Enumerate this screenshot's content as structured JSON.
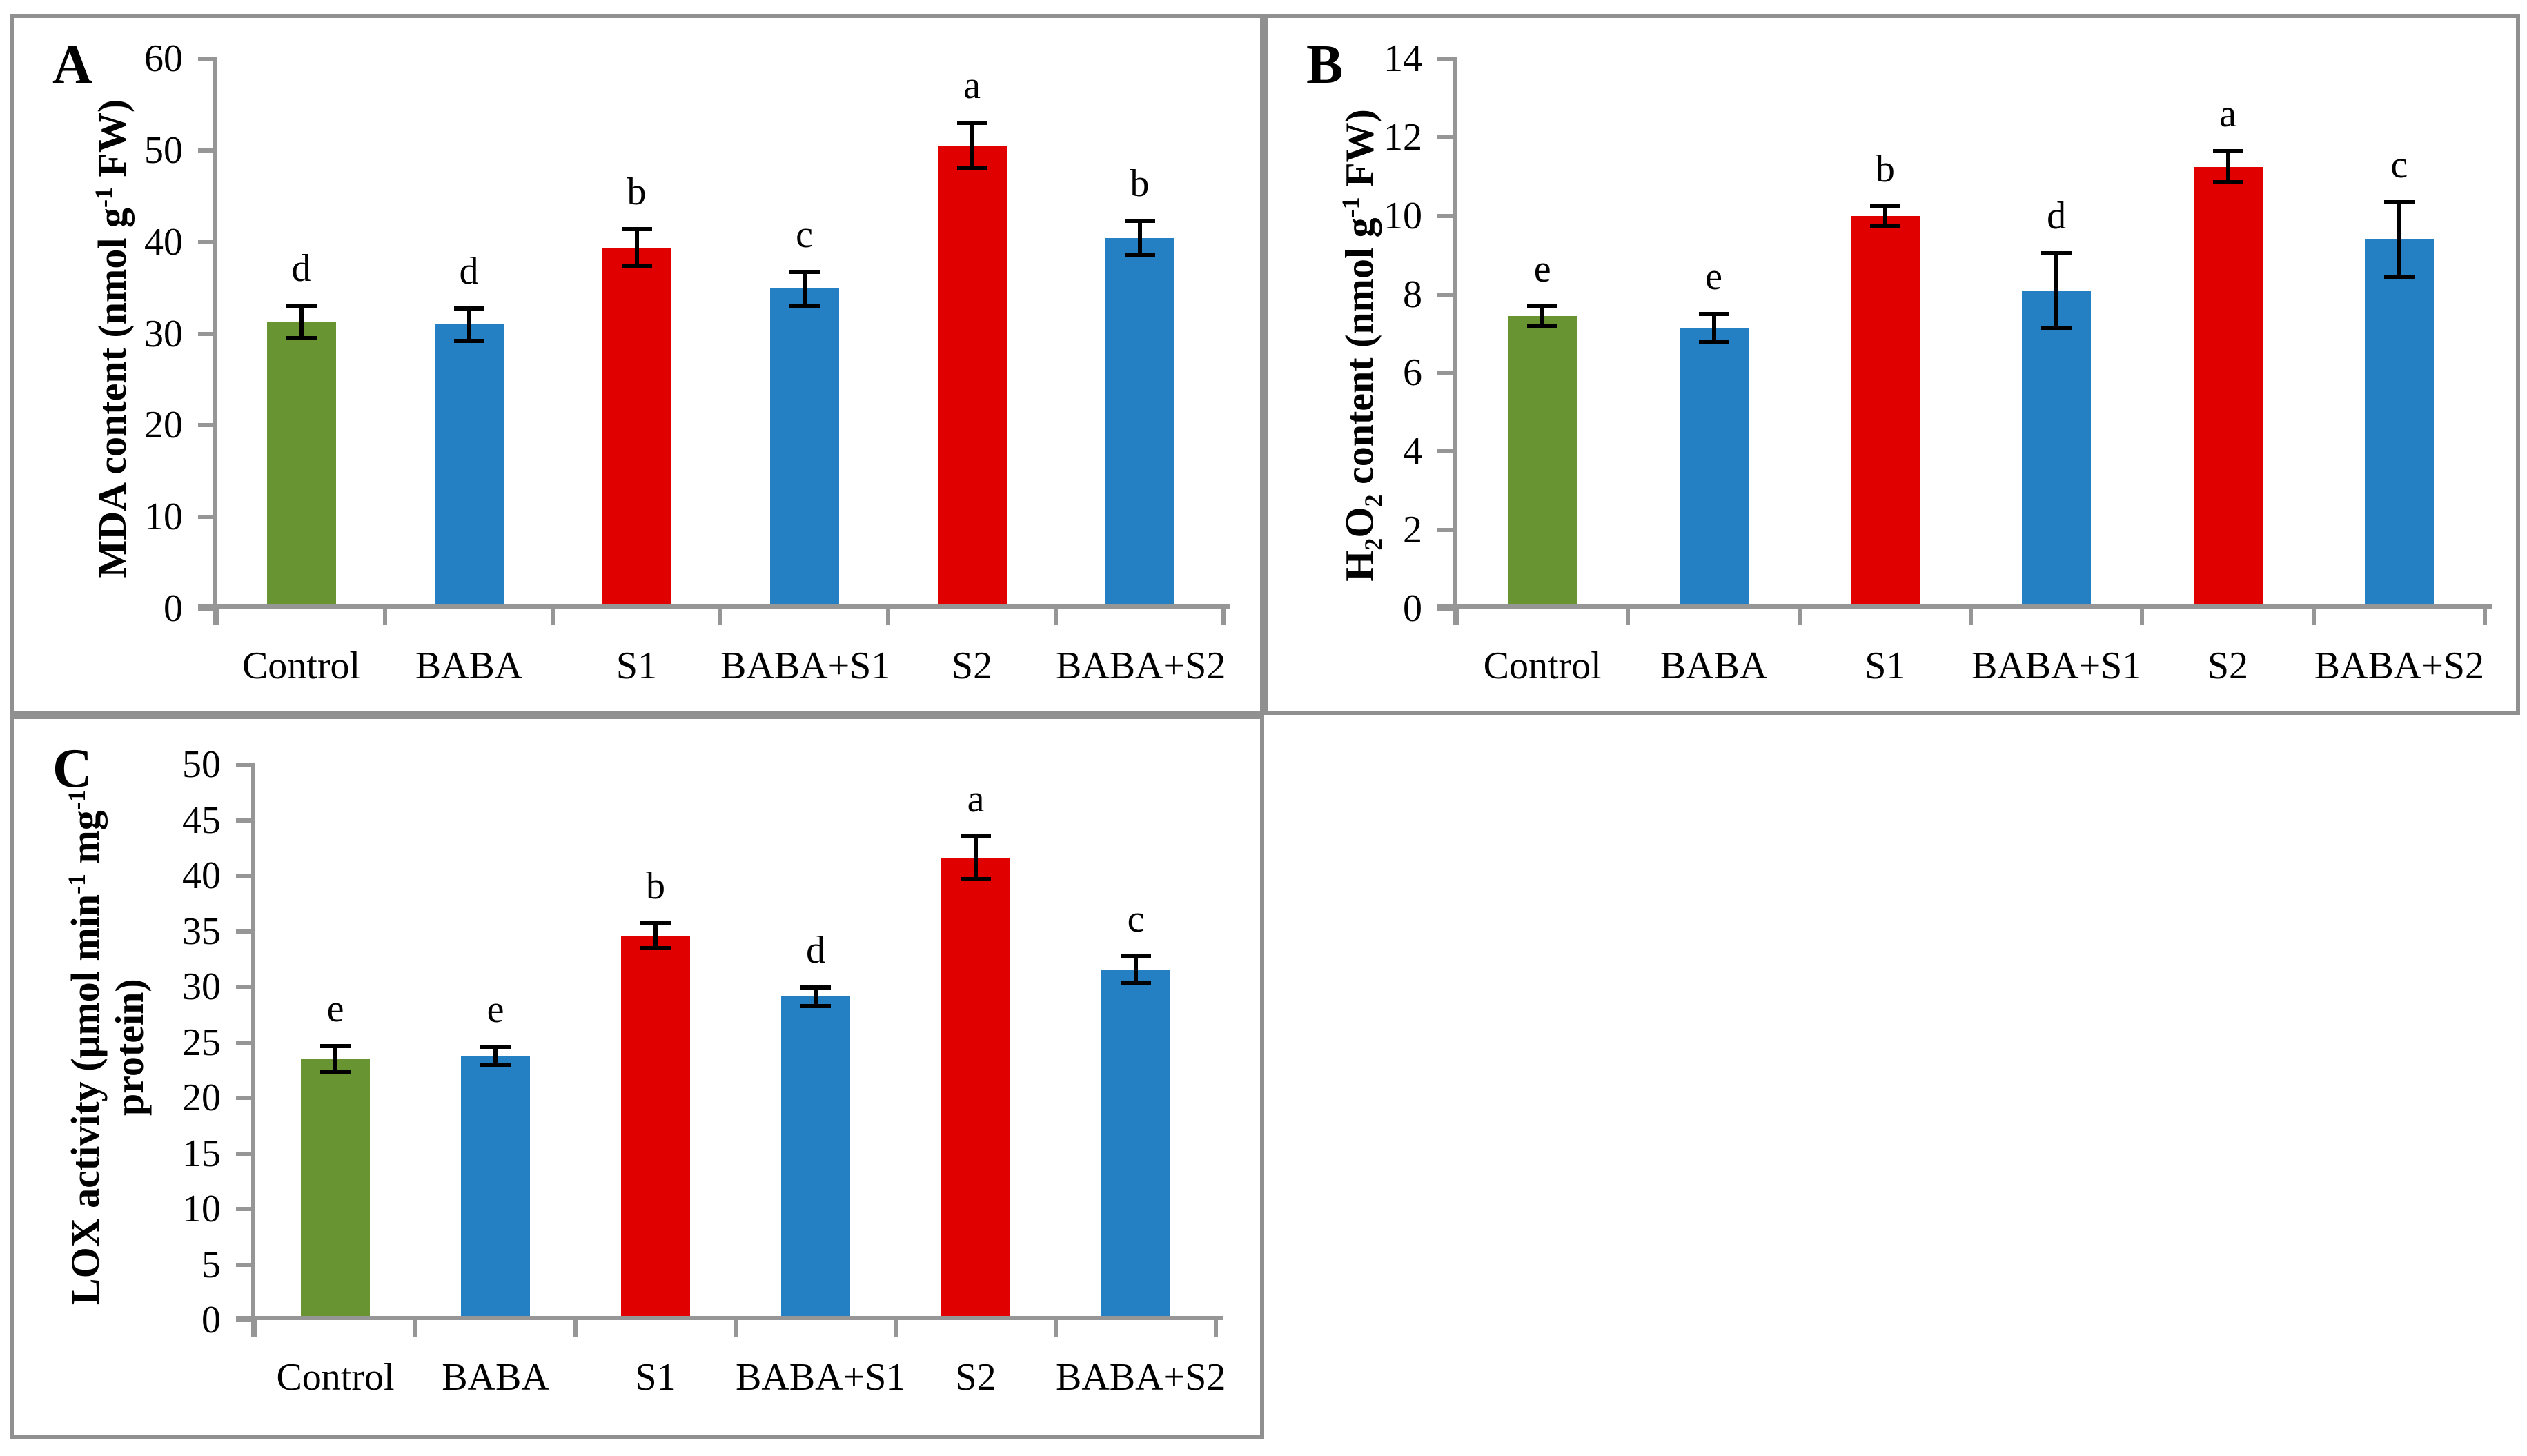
{
  "figure": {
    "background": "#ffffff",
    "panel_border_color": "#909090",
    "axis_color": "#969696",
    "text_color": "#000000"
  },
  "chart_data": [
    {
      "type": "bar",
      "panel_letter": "A",
      "title": "",
      "xlabel": "",
      "ylabel": "MDA content (nmol g-1 FW)",
      "ylabel_lines": [
        [
          {
            "text": "MDA content (nmol g",
            "style": "normal"
          },
          {
            "text": "-1",
            "style": "sup"
          },
          {
            "text": " FW)",
            "style": "normal"
          }
        ]
      ],
      "categories": [
        "Control",
        "BABA",
        "S1",
        "BABA+S1",
        "S2",
        "BABA+S2"
      ],
      "values": [
        31.3,
        31.0,
        39.4,
        34.9,
        50.5,
        40.4
      ],
      "errors": [
        2.0,
        2.0,
        2.2,
        2.1,
        2.7,
        2.1
      ],
      "sig_letters": [
        "d",
        "d",
        "b",
        "c",
        "a",
        "b"
      ],
      "bar_colors": [
        "#699432",
        "#2480c2",
        "#e00000",
        "#2480c2",
        "#e00000",
        "#2480c2"
      ],
      "ylim": [
        0,
        60
      ],
      "ytick_step": 10,
      "grid": false,
      "legend": null
    },
    {
      "type": "bar",
      "panel_letter": "B",
      "title": "",
      "xlabel": "",
      "ylabel": "H2O2 content (nmol g-1 FW)",
      "ylabel_lines": [
        [
          {
            "text": "H",
            "style": "normal"
          },
          {
            "text": "2",
            "style": "sub"
          },
          {
            "text": "O",
            "style": "normal"
          },
          {
            "text": "2",
            "style": "sub"
          },
          {
            "text": " content (nmol g",
            "style": "normal"
          },
          {
            "text": "-1",
            "style": "sup"
          },
          {
            "text": " FW)",
            "style": "normal"
          }
        ]
      ],
      "categories": [
        "Control",
        "BABA",
        "S1",
        "BABA+S1",
        "S2",
        "BABA+S2"
      ],
      "values": [
        7.45,
        7.15,
        10.0,
        8.1,
        11.25,
        9.4
      ],
      "errors": [
        0.3,
        0.4,
        0.3,
        1.0,
        0.45,
        1.0
      ],
      "sig_letters": [
        "e",
        "e",
        "b",
        "d",
        "a",
        "c"
      ],
      "bar_colors": [
        "#699432",
        "#2480c2",
        "#e00000",
        "#2480c2",
        "#e00000",
        "#2480c2"
      ],
      "ylim": [
        0,
        14
      ],
      "ytick_step": 2,
      "grid": false,
      "legend": null
    },
    {
      "type": "bar",
      "panel_letter": "C",
      "title": "",
      "xlabel": "",
      "ylabel": "LOX activity (umol min-1 mg-1 protein)",
      "ylabel_lines": [
        [
          {
            "text": "LOX activity  (μmol min",
            "style": "normal"
          },
          {
            "text": "-1",
            "style": "sup"
          },
          {
            "text": " mg",
            "style": "normal"
          },
          {
            "text": "-1",
            "style": "sup"
          }
        ],
        [
          {
            "text": "protein)",
            "style": "normal"
          }
        ]
      ],
      "categories": [
        "Control",
        "BABA",
        "S1",
        "BABA+S1",
        "S2",
        "BABA+S2"
      ],
      "values": [
        23.5,
        23.8,
        34.6,
        29.1,
        41.6,
        31.5
      ],
      "errors": [
        1.35,
        1.0,
        1.3,
        1.0,
        2.1,
        1.4
      ],
      "sig_letters": [
        "e",
        "e",
        "b",
        "d",
        "a",
        "c"
      ],
      "bar_colors": [
        "#699432",
        "#2480c2",
        "#e00000",
        "#2480c2",
        "#e00000",
        "#2480c2"
      ],
      "ylim": [
        0,
        50
      ],
      "ytick_step": 5,
      "grid": false,
      "legend": null
    }
  ]
}
